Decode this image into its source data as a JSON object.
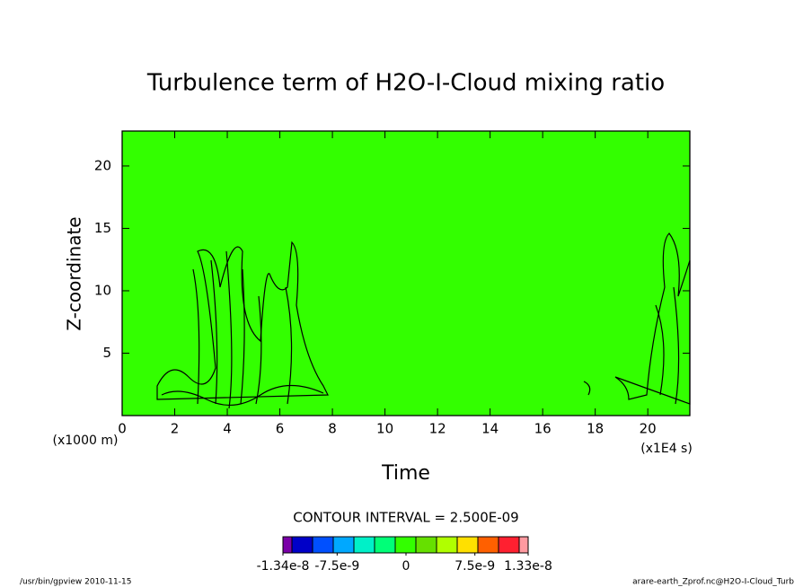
{
  "chart_data": {
    "type": "contour",
    "title": "Turbulence term of H2O-I-Cloud mixing ratio",
    "x_label": "Time",
    "y_label": "Z-coordinate",
    "x_unit": "(x1E4 s)",
    "y_unit": "(x1000 m)",
    "xlim": [
      0,
      21.6
    ],
    "xticks": [
      0,
      2,
      4,
      6,
      8,
      10,
      12,
      14,
      16,
      18,
      20
    ],
    "ylim": [
      0,
      22.8
    ],
    "yticks": [
      5,
      10,
      15,
      20
    ],
    "fill_color": "#33ff00",
    "contour_interval": "CONTOUR INTERVAL = 2.500E-09",
    "colorbar": {
      "colors": [
        "#7a00a8",
        "#0000c8",
        "#0050ff",
        "#00a8ff",
        "#00f0c8",
        "#00ff78",
        "#33ff00",
        "#66e000",
        "#b0ff00",
        "#ffe000",
        "#ff6000",
        "#ff2030",
        "#ff9aa0"
      ],
      "clim": [
        -1.34e-08,
        1.33e-08
      ],
      "ticks": [
        -1.34e-08,
        -7.5e-09,
        0,
        7.5e-09,
        1.33e-08
      ]
    },
    "footer_left": "/usr/bin/gpview  2010-11-15",
    "footer_right": "arare-earth_Zprof.nc@H2O-I-Cloud_Turb"
  }
}
